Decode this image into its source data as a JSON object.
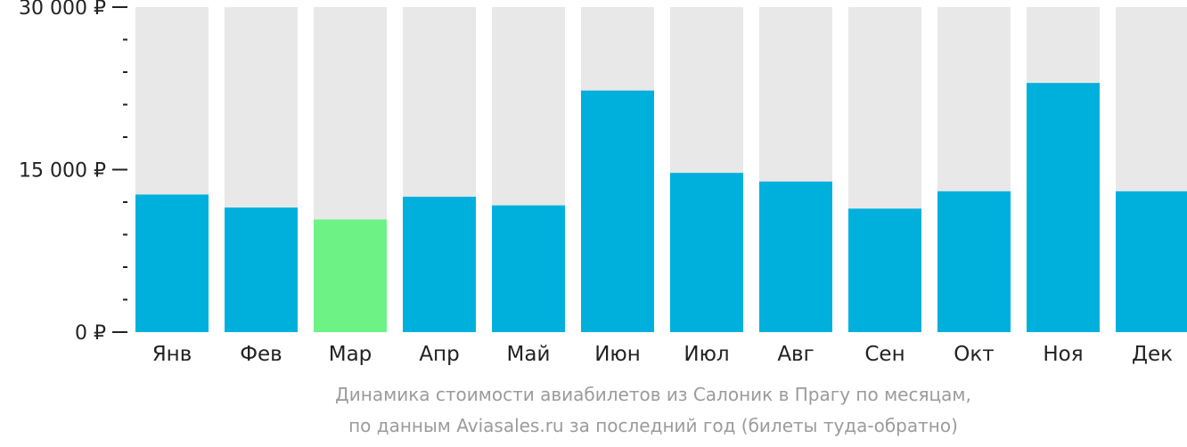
{
  "chart_data": {
    "type": "bar",
    "categories": [
      "Янв",
      "Фев",
      "Мар",
      "Апр",
      "Май",
      "Июн",
      "Июл",
      "Авг",
      "Сен",
      "Окт",
      "Ноя",
      "Дек"
    ],
    "values": [
      12700,
      11500,
      10400,
      12500,
      11700,
      22300,
      14700,
      13900,
      11400,
      13000,
      23000,
      13000
    ],
    "highlight_index": 2,
    "ylim": [
      0,
      30000
    ],
    "y_ticks": [
      {
        "value": 0,
        "label": "0 ₽"
      },
      {
        "value": 15000,
        "label": "15 000 ₽"
      },
      {
        "value": 30000,
        "label": "30 000 ₽"
      }
    ],
    "y_minor_step": 3000,
    "grid": false,
    "legend": "none",
    "title": "Динамика стоимости авиабилетов из Салоник в Прагу по месяцам,",
    "subtitle": "по данным Aviasales.ru за последний год (билеты туда-обратно)",
    "colors": {
      "bar": "#00b0dc",
      "highlight": "#6df286",
      "track": "#e8e8e8",
      "axis": "#222222",
      "caption": "#9b9b9b"
    }
  }
}
